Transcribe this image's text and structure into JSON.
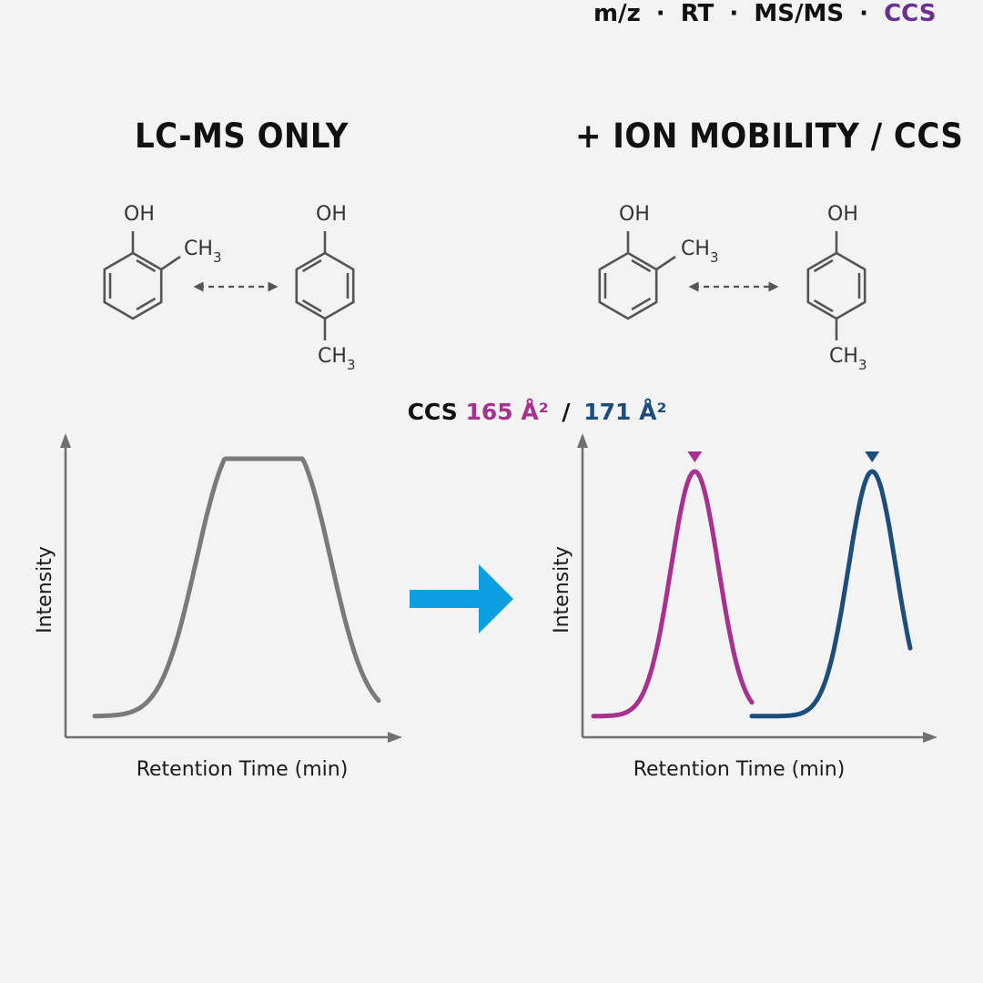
{
  "left_panel": {
    "title": "LC-MS ONLY",
    "y_label": "Intensity",
    "x_label": "Retention Time (min)"
  },
  "right_panel": {
    "title": "+ ION MOBILITY / CCS",
    "y_label": "Intensity",
    "x_label": "Retention Time (min)"
  },
  "molecules": {
    "hydroxyl": "OH",
    "methyl_main": "CH",
    "methyl_sub": "3"
  },
  "ccs_annotation": {
    "prefix": "CCS",
    "value_1": "165 Å²",
    "separator": "/",
    "value_2": "171 Å²"
  },
  "features": {
    "items": [
      "m/z",
      "RT",
      "MS/MS"
    ],
    "separator": "·",
    "highlight": "CCS"
  },
  "colors": {
    "background": "#f3f3f3",
    "axis": "#707070",
    "unresolved_trace": "#7a7a7a",
    "isomer_1": "#a8308f",
    "isomer_2": "#1c4d7c",
    "arrow": "#0c9ee0",
    "ccs_highlight": "#6a2f8f",
    "structure": "#555555"
  },
  "chart_data": [
    {
      "type": "line",
      "panel": "left",
      "title": "LC-MS ONLY",
      "xlabel": "Retention Time (min)",
      "ylabel": "Intensity",
      "x_ticks": [],
      "y_ticks": [],
      "series": [
        {
          "color": "#7a7a7a",
          "model": "sum of two gaussians",
          "peaks": [
            {
              "center": 0.47,
              "height": 0.97,
              "width": 0.12
            },
            {
              "center": 0.72,
              "height": 0.97,
              "width": 0.12
            }
          ],
          "baseline": 0.04
        }
      ]
    },
    {
      "type": "line",
      "panel": "right",
      "title": "+ ION MOBILITY / CCS",
      "xlabel": "Retention Time (min)",
      "ylabel": "Intensity",
      "x_ticks": [],
      "y_ticks": [],
      "series": [
        {
          "color": "#a8308f",
          "model": "gaussian",
          "peaks": [
            {
              "center": 0.32,
              "height": 1.0,
              "width": 0.075
            }
          ],
          "baseline": 0.04,
          "marker": "triangle-down",
          "annotation": "165 Å²"
        },
        {
          "color": "#1c4d7c",
          "model": "gaussian",
          "peaks": [
            {
              "center": 0.88,
              "height": 1.0,
              "width": 0.075
            }
          ],
          "baseline": 0.04,
          "marker": "triangle-down",
          "annotation": "171 Å²"
        }
      ]
    }
  ]
}
